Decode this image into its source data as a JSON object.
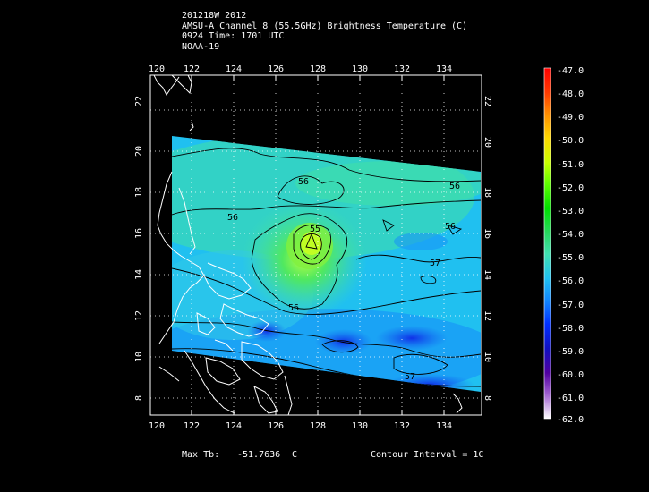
{
  "header": {
    "line1": "201218W 2012",
    "line2": "AMSU-A Channel 8 (55.5GHz) Brightness Temperature (C)",
    "line3": "0924 Time: 1701 UTC",
    "line4": "NOAA-19"
  },
  "axes": {
    "lon_labels": [
      "120",
      "122",
      "124",
      "126",
      "128",
      "130",
      "132",
      "134"
    ],
    "lat_labels": [
      "8",
      "10",
      "12",
      "14",
      "16",
      "18",
      "20",
      "22"
    ]
  },
  "colorbar": {
    "labels": [
      "-47.0",
      "-48.0",
      "-49.0",
      "-50.0",
      "-51.0",
      "-52.0",
      "-53.0",
      "-54.0",
      "-55.0",
      "-56.0",
      "-57.0",
      "-58.0",
      "-59.0",
      "-60.0",
      "-61.0",
      "-62.0"
    ]
  },
  "contour_labels": [
    "56",
    "56",
    "55",
    "56",
    "56",
    "57",
    "56",
    "57"
  ],
  "footer": {
    "max_label": "Max Tb:",
    "max_value": "-51.7636",
    "max_unit": "C",
    "contour_interval": "Contour Interval = 1C"
  },
  "chart_data": {
    "type": "heatmap",
    "xlim": [
      120,
      136
    ],
    "ylim": [
      7,
      23.5
    ],
    "vlim": [
      -62,
      -47
    ],
    "max_tb": -51.7636,
    "contour_interval": 1,
    "units": "C"
  }
}
